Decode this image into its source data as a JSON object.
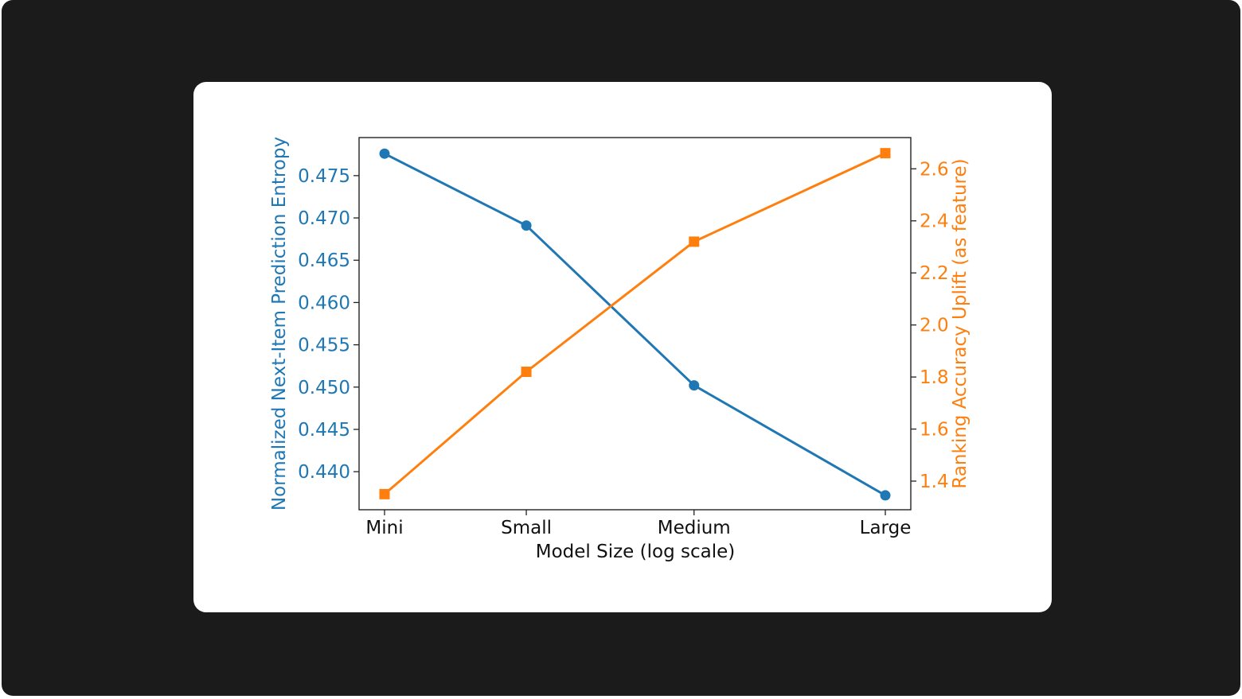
{
  "chart_data": {
    "type": "line",
    "x_scale": "log",
    "categories": [
      "Mini",
      "Small",
      "Medium",
      "Large"
    ],
    "xlabel": "Model Size (log scale)",
    "grid": false,
    "left_axis": {
      "label": "Normalized Next-Item Prediction Entropy",
      "color": "#1f77b4",
      "ylim": [
        0.4355,
        0.4795
      ],
      "ticks": [
        "0.440",
        "0.445",
        "0.450",
        "0.455",
        "0.460",
        "0.465",
        "0.470",
        "0.475"
      ]
    },
    "right_axis": {
      "label": "Ranking Accuracy Uplift (as feature)",
      "color": "#ff7f0e",
      "ylim": [
        1.29,
        2.72
      ],
      "ticks": [
        "1.4",
        "1.6",
        "1.8",
        "2.0",
        "2.2",
        "2.4",
        "2.6"
      ]
    },
    "series": [
      {
        "axis": "left",
        "color": "#1f77b4",
        "marker": "circle",
        "x": [
          1,
          1.852,
          3.84,
          8.82
        ],
        "values": [
          0.4776,
          0.4691,
          0.4502,
          0.4372
        ]
      },
      {
        "axis": "right",
        "color": "#ff7f0e",
        "marker": "square",
        "x": [
          1,
          1.852,
          3.84,
          8.82
        ],
        "values": [
          1.35,
          1.82,
          2.32,
          2.66
        ]
      }
    ]
  }
}
